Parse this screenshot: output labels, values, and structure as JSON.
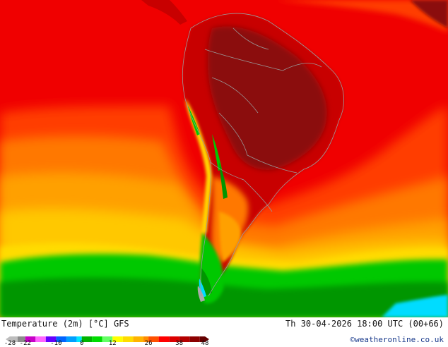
{
  "map": {
    "title": "Temperature (2m) [°C] GFS",
    "valid_time": "Th 30-04-2026 18:00 UTC (00+66)",
    "credit": "©weatheronline.co.uk",
    "region": "South America",
    "colors": {
      "very_hot": "#8b0a0a",
      "hot": "#c80000",
      "warm_red": "#f00000",
      "orange_red": "#ff3c00",
      "orange": "#ff7800",
      "light_orange": "#ffa000",
      "yellow_orange": "#ffb400",
      "yellow": "#ffc800",
      "light_yellow": "#ffdc00",
      "green": "#00c800",
      "dark_green": "#009600",
      "cyan": "#00dcff",
      "gray": "#aaaaaa"
    },
    "legend": {
      "ticks": [
        "-28",
        "-22",
        "-10",
        "0",
        "12",
        "26",
        "38",
        "48"
      ],
      "tick_values": [
        -28,
        -22,
        -10,
        0,
        12,
        26,
        38,
        48
      ],
      "min": -28,
      "max": 48,
      "stops": [
        {
          "from": -28,
          "color": "#bdbdbd"
        },
        {
          "from": -25,
          "color": "#8c8c8c"
        },
        {
          "from": -22,
          "color": "#c800c8"
        },
        {
          "from": -18,
          "color": "#ff64ff"
        },
        {
          "from": -14,
          "color": "#6400ff"
        },
        {
          "from": -10,
          "color": "#0064ff"
        },
        {
          "from": -6,
          "color": "#00a0ff"
        },
        {
          "from": -2,
          "color": "#00e6ff"
        },
        {
          "from": 0,
          "color": "#00b400"
        },
        {
          "from": 4,
          "color": "#00dc00"
        },
        {
          "from": 8,
          "color": "#64ff64"
        },
        {
          "from": 12,
          "color": "#ffff00"
        },
        {
          "from": 16,
          "color": "#ffdc00"
        },
        {
          "from": 20,
          "color": "#ffb400"
        },
        {
          "from": 24,
          "color": "#ff8c00"
        },
        {
          "from": 26,
          "color": "#ff5000"
        },
        {
          "from": 30,
          "color": "#ff0000"
        },
        {
          "from": 34,
          "color": "#dc0000"
        },
        {
          "from": 38,
          "color": "#b40000"
        },
        {
          "from": 42,
          "color": "#8c0000"
        },
        {
          "from": 46,
          "color": "#640000"
        }
      ]
    }
  }
}
